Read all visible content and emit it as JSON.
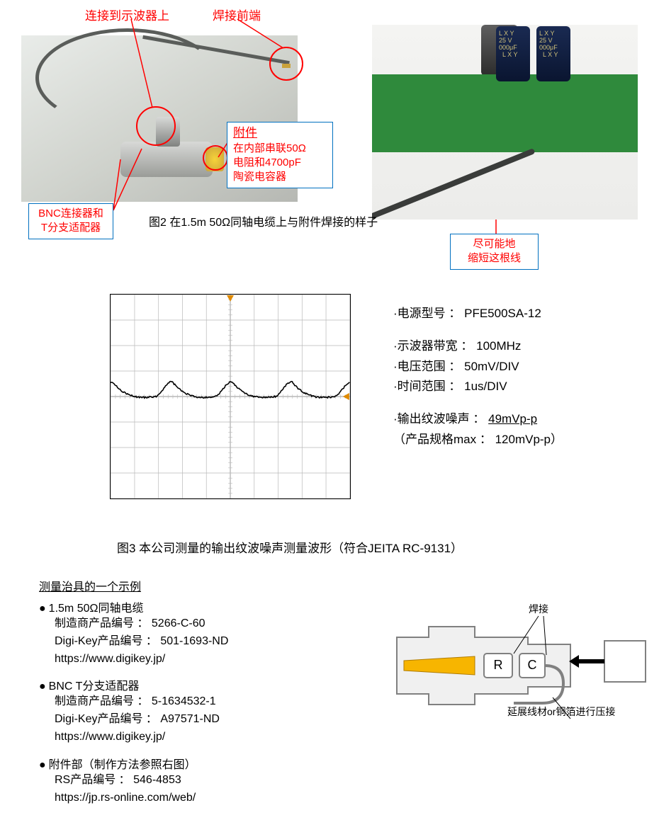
{
  "top": {
    "label_scope": "连接到示波器上",
    "label_tip": "焊接前端",
    "box_bnc": "BNC连接器和\nT分支适配器",
    "box_att_title": "附件",
    "box_att_body": "在内部串联50Ω\n电阻和4700pF\n陶瓷电容器",
    "fig2": "图2 在1.5m 50Ω同轴电缆上与附件焊接的样子",
    "box_short": "尽可能地\n缩短这根线",
    "cap_text": "L X Y\n25 V\n000μF\n  L X Y"
  },
  "colors": {
    "red": "#ff0000",
    "blue": "#0070c0",
    "pcb": "#2f8a3c",
    "conn_fill": "#f0f0f0",
    "conn_stroke": "#808080",
    "yellow": "#f7b500"
  },
  "scope": {
    "title": "图3 本公司测量的输出纹波噪声测量波形（符合JEITA RC-9131）",
    "grid": {
      "cols": 10,
      "rows": 8,
      "color": "#b8b8b8"
    },
    "wave": {
      "baseline": 0.5,
      "period_divs": 2.5,
      "peak_up_divs": 0.58,
      "trough_divs": 0.18,
      "color": "#000000",
      "noise_amp_divs": 0.06
    },
    "marker_color": "#e08a00"
  },
  "specs": {
    "model_l": "·电源型号 ：",
    "model_v": "PFE500SA-12",
    "bw_l": "·示波器带宽 ：",
    "bw_v": "100MHz",
    "volt_l": "·电压范围 ：",
    "volt_v": "50mV/DIV",
    "time_l": "·时间范围 ：",
    "time_v": "1us/DIV",
    "ripple_l": "·输出纹波噪声 ：",
    "ripple_v": "49mVp-p",
    "max_l": "（产品规格max ：",
    "max_v": "120mVp-p）"
  },
  "jig": {
    "heading": "测量治具的一个示例",
    "items": [
      {
        "title": "1.5m 50Ω同轴电缆",
        "lines": [
          "制造商产品编号 ： 5266-C-60",
          "Digi-Key产品编号 ： 501-1693-ND",
          "https://www.digikey.jp/"
        ]
      },
      {
        "title": "BNC T分支适配器",
        "lines": [
          "制造商产品编号 ： 5-1634532-1",
          "Digi-Key产品编号 ： A97571-ND",
          "https://www.digikey.jp/"
        ]
      },
      {
        "title": "附件部（制作方法参照右图）",
        "lines": [
          "RS产品编号 ： 546-4853",
          "https://jp.rs-online.com/web/"
        ]
      }
    ]
  },
  "diag": {
    "label_solder": "焊接",
    "label_crimp": "延展线材or铜箔进行压接",
    "R": "R",
    "C": "C"
  }
}
